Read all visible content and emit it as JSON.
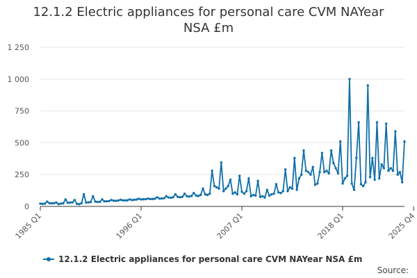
{
  "title_line1": "12.1.2 Electric appliances for personal care CVM NAYear",
  "title_line2": "NSA £m",
  "source_label": "Source:",
  "colors": {
    "series": "#0f6fa8",
    "grid": "#e6e6e6",
    "axis": "#333333",
    "label": "#555555"
  },
  "chart_data": {
    "type": "line",
    "title": "12.1.2 Electric appliances for personal care CVM NAYear NSA £m",
    "xlabel": "",
    "ylabel": "",
    "ylim": [
      0,
      1250
    ],
    "yticks": [
      0,
      250,
      500,
      750,
      1000,
      1250
    ],
    "ytick_labels": [
      "0",
      "250",
      "500",
      "750",
      "1 000",
      "1 250"
    ],
    "x_start": "1985 Q1",
    "x_end": "2025 Q4",
    "x_ticks": [
      {
        "index": 0,
        "label": "1985 Q1"
      },
      {
        "index": 44,
        "label": "1996 Q1"
      },
      {
        "index": 88,
        "label": "2007 Q1"
      },
      {
        "index": 132,
        "label": "2018 Q1"
      },
      {
        "index": 163,
        "label": "2025 Q4"
      }
    ],
    "legend": "12.1.2 Electric appliances for personal care CVM NAYear NSA £m",
    "legend_position": "bottom",
    "grid": true,
    "series": [
      {
        "name": "12.1.2 Electric appliances for personal care CVM NAYear NSA £m",
        "values": [
          22,
          20,
          22,
          38,
          25,
          24,
          26,
          30,
          18,
          22,
          24,
          55,
          28,
          30,
          32,
          50,
          20,
          18,
          25,
          95,
          30,
          32,
          34,
          80,
          38,
          35,
          36,
          55,
          40,
          40,
          42,
          50,
          45,
          44,
          46,
          52,
          48,
          47,
          48,
          55,
          50,
          52,
          54,
          60,
          55,
          56,
          57,
          62,
          58,
          58,
          60,
          72,
          62,
          62,
          64,
          80,
          70,
          68,
          72,
          95,
          75,
          72,
          75,
          100,
          80,
          78,
          82,
          105,
          85,
          82,
          90,
          140,
          95,
          90,
          100,
          280,
          160,
          150,
          140,
          345,
          120,
          140,
          160,
          210,
          100,
          110,
          95,
          240,
          115,
          100,
          120,
          220,
          80,
          90,
          85,
          200,
          75,
          80,
          70,
          130,
          85,
          95,
          100,
          175,
          110,
          105,
          120,
          290,
          120,
          150,
          140,
          380,
          130,
          220,
          250,
          440,
          280,
          270,
          250,
          310,
          170,
          180,
          270,
          420,
          270,
          280,
          260,
          440,
          340,
          300,
          260,
          510,
          180,
          220,
          240,
          1000,
          180,
          130,
          380,
          660,
          175,
          160,
          190,
          950,
          230,
          380,
          210,
          660,
          220,
          330,
          300,
          650,
          280,
          300,
          280,
          590,
          250,
          270,
          190,
          510
        ]
      }
    ]
  }
}
